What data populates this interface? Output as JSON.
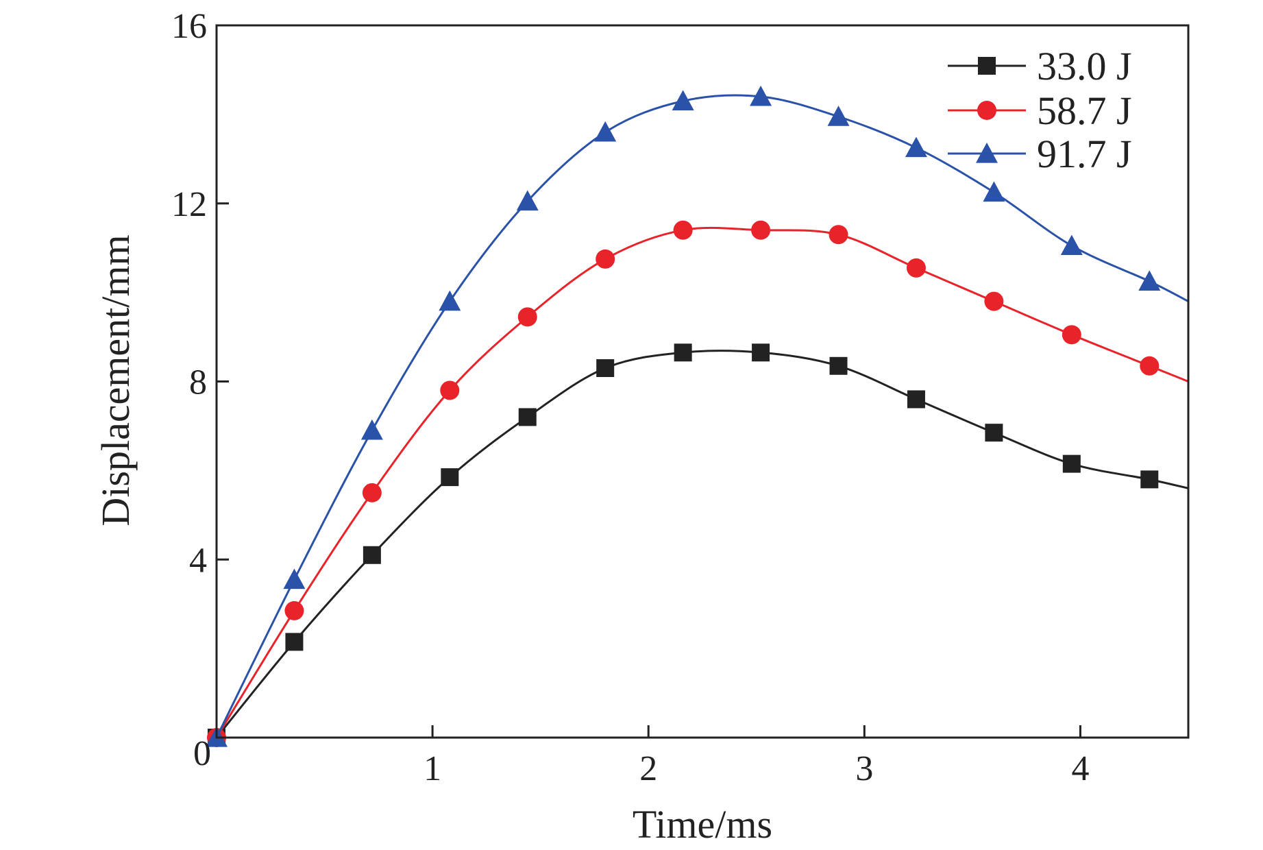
{
  "chart_data": {
    "type": "line",
    "title": "",
    "xlabel": "Time/ms",
    "ylabel": "Displacement/mm",
    "xlim": [
      0,
      4.5
    ],
    "ylim": [
      0,
      16
    ],
    "xticks": [
      0,
      1,
      2,
      3,
      4
    ],
    "yticks": [
      0,
      4,
      8,
      12,
      16
    ],
    "x_tick_labels": [
      "1",
      "2",
      "3",
      "4"
    ],
    "y_tick_labels": [
      "0",
      "4",
      "8",
      "12",
      "16"
    ],
    "grid": false,
    "legend_position": "top-right",
    "series": [
      {
        "name": "33.0 J",
        "color": "#222222",
        "marker": "square",
        "x": [
          0.0,
          0.36,
          0.72,
          1.08,
          1.44,
          1.8,
          2.16,
          2.52,
          2.88,
          3.24,
          3.6,
          3.96,
          4.32
        ],
        "y": [
          0.0,
          2.15,
          4.1,
          5.85,
          7.2,
          8.3,
          8.65,
          8.65,
          8.35,
          7.6,
          6.85,
          6.15,
          5.8
        ],
        "line_end": [
          4.5,
          5.6
        ]
      },
      {
        "name": "58.7 J",
        "color": "#e8232a",
        "marker": "circle",
        "x": [
          0.0,
          0.36,
          0.72,
          1.08,
          1.44,
          1.8,
          2.16,
          2.52,
          2.88,
          3.24,
          3.6,
          3.96,
          4.32
        ],
        "y": [
          0.0,
          2.85,
          5.5,
          7.8,
          9.45,
          10.75,
          11.4,
          11.4,
          11.3,
          10.55,
          9.8,
          9.05,
          8.35
        ],
        "line_end": [
          4.5,
          8.0
        ]
      },
      {
        "name": "91.7 J",
        "color": "#2a52a8",
        "marker": "triangle",
        "x": [
          0.0,
          0.36,
          0.72,
          1.08,
          1.44,
          1.8,
          2.16,
          2.52,
          2.88,
          3.24,
          3.6,
          3.96,
          4.32
        ],
        "y": [
          0.0,
          3.55,
          6.9,
          9.8,
          12.05,
          13.6,
          14.3,
          14.4,
          13.95,
          13.25,
          12.25,
          11.05,
          10.25
        ],
        "line_end": [
          4.5,
          9.8
        ]
      }
    ]
  }
}
